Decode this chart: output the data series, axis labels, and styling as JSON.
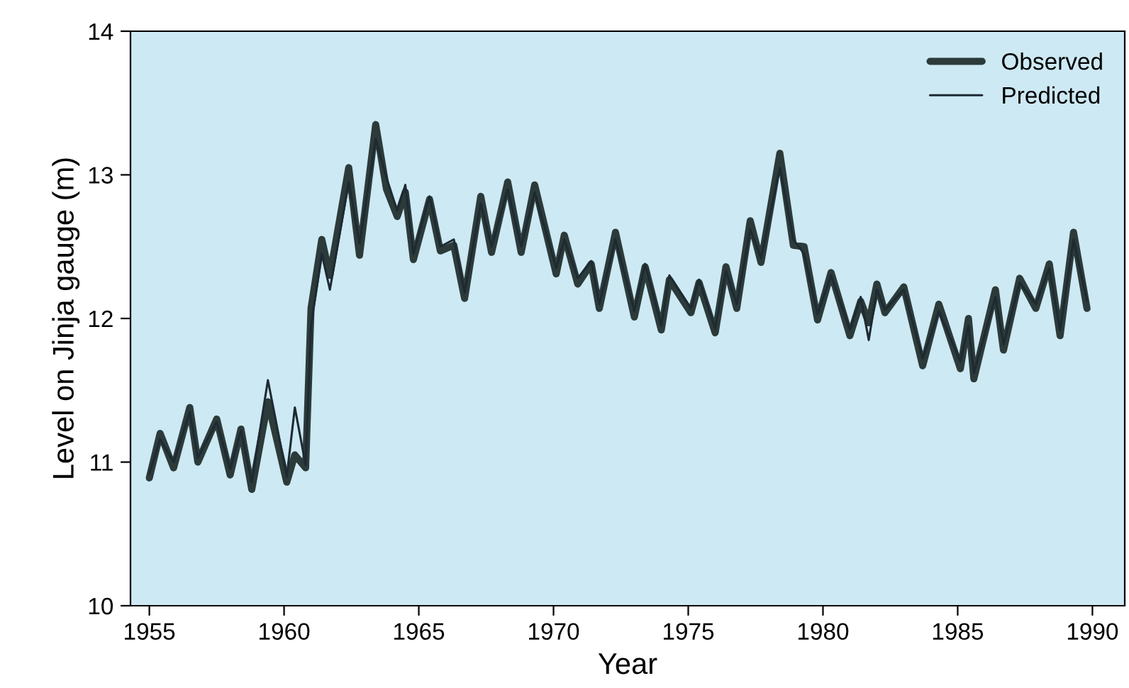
{
  "chart_data": {
    "type": "line",
    "xlabel": "Year",
    "ylabel": "Level on Jinja gauge (m)",
    "xlim": [
      1954.3,
      1991.2
    ],
    "ylim": [
      10,
      14
    ],
    "xticks": [
      1955,
      1960,
      1965,
      1970,
      1975,
      1980,
      1985,
      1990
    ],
    "yticks": [
      10,
      11,
      12,
      13,
      14
    ],
    "grid": false,
    "legend": "top right",
    "x": [
      1955.0,
      1955.4,
      1955.9,
      1956.5,
      1956.8,
      1957.5,
      1958.0,
      1958.4,
      1958.8,
      1959.4,
      1960.1,
      1960.4,
      1960.8,
      1961.0,
      1961.4,
      1961.7,
      1962.4,
      1962.8,
      1963.4,
      1963.8,
      1964.2,
      1964.5,
      1964.8,
      1965.4,
      1965.8,
      1966.3,
      1966.7,
      1967.3,
      1967.7,
      1968.3,
      1968.8,
      1969.3,
      1970.1,
      1970.4,
      1970.9,
      1971.4,
      1971.7,
      1972.3,
      1973.0,
      1973.4,
      1974.0,
      1974.3,
      1975.1,
      1975.4,
      1976.0,
      1976.4,
      1976.8,
      1977.3,
      1977.7,
      1978.4,
      1978.9,
      1979.3,
      1979.8,
      1980.3,
      1981.0,
      1981.4,
      1981.7,
      1982.0,
      1982.3,
      1983.0,
      1983.7,
      1984.3,
      1985.1,
      1985.4,
      1985.6,
      1986.4,
      1986.7,
      1987.3,
      1987.9,
      1988.4,
      1988.8,
      1989.3,
      1989.8
    ],
    "series": [
      {
        "name": "Observed",
        "color": "#2c3b3a",
        "values": [
          10.89,
          11.2,
          10.96,
          11.38,
          11.0,
          11.3,
          10.91,
          11.23,
          10.81,
          11.42,
          10.86,
          11.05,
          10.96,
          12.07,
          12.55,
          12.3,
          13.05,
          12.44,
          13.35,
          12.9,
          12.71,
          12.88,
          12.41,
          12.83,
          12.47,
          12.51,
          12.14,
          12.85,
          12.46,
          12.95,
          12.46,
          12.93,
          12.31,
          12.58,
          12.24,
          12.38,
          12.07,
          12.6,
          12.01,
          12.36,
          11.92,
          12.27,
          12.04,
          12.25,
          11.9,
          12.36,
          12.07,
          12.68,
          12.39,
          13.15,
          12.51,
          12.5,
          11.99,
          12.32,
          11.88,
          12.12,
          11.97,
          12.24,
          12.04,
          12.22,
          11.67,
          12.1,
          11.65,
          12.0,
          11.58,
          12.2,
          11.78,
          12.28,
          12.07,
          12.38,
          11.88,
          12.6,
          12.07
        ]
      },
      {
        "name": "Predicted",
        "color": "#1d2a33",
        "values": [
          10.92,
          11.16,
          11.0,
          11.35,
          11.03,
          11.28,
          10.95,
          11.22,
          10.86,
          11.57,
          10.9,
          11.38,
          10.98,
          11.95,
          12.45,
          12.2,
          12.95,
          12.52,
          13.25,
          12.98,
          12.75,
          12.93,
          12.45,
          12.85,
          12.5,
          12.55,
          12.18,
          12.8,
          12.5,
          12.9,
          12.5,
          12.88,
          12.35,
          12.55,
          12.28,
          12.4,
          12.1,
          12.55,
          12.05,
          12.38,
          11.95,
          12.3,
          12.07,
          12.27,
          11.93,
          12.33,
          12.1,
          12.62,
          12.42,
          13.05,
          12.55,
          12.45,
          12.03,
          12.3,
          11.92,
          12.15,
          11.85,
          12.2,
          12.06,
          12.2,
          11.72,
          12.05,
          11.7,
          11.95,
          11.62,
          12.15,
          11.82,
          12.25,
          12.1,
          12.35,
          11.92,
          12.55,
          12.12
        ]
      }
    ]
  }
}
